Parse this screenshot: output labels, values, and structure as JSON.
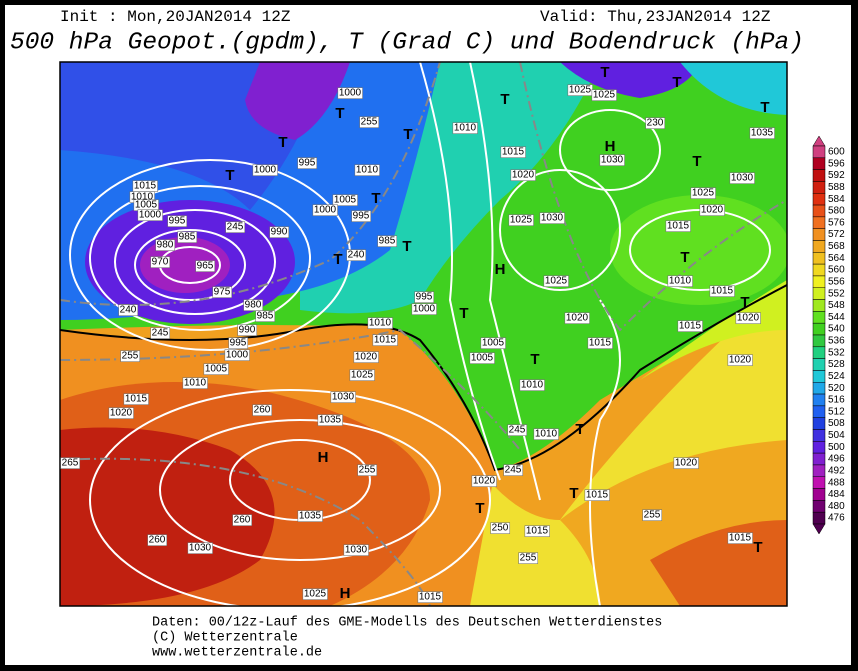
{
  "header": {
    "init": "Init : Mon,20JAN2014 12Z",
    "valid": "Valid: Thu,23JAN2014 12Z",
    "title": "500 hPa Geopot.(gpdm), T (Grad C) und Bodendruck (hPa)"
  },
  "colorbar": {
    "levels": [
      600,
      596,
      592,
      588,
      584,
      580,
      576,
      572,
      568,
      564,
      560,
      556,
      552,
      548,
      544,
      540,
      536,
      532,
      528,
      524,
      520,
      516,
      512,
      508,
      504,
      500,
      496,
      492,
      488,
      484,
      480,
      476
    ],
    "colors": [
      "#d04080",
      "#b00020",
      "#c01010",
      "#d02010",
      "#e03010",
      "#e85018",
      "#f07020",
      "#f09020",
      "#f0a820",
      "#f0c020",
      "#f0d820",
      "#f0f020",
      "#d0f020",
      "#a0e820",
      "#60e020",
      "#40d020",
      "#30c840",
      "#20d080",
      "#20d0b0",
      "#20c8d8",
      "#20a8e8",
      "#2080f0",
      "#2060f0",
      "#2040e0",
      "#4030e0",
      "#6020e0",
      "#8020d0",
      "#a020c0",
      "#c010b0",
      "#a00090",
      "#700070",
      "#500050"
    ]
  },
  "map_labels": [
    "T",
    "1025",
    "1025",
    "T",
    "T",
    "1035",
    "230",
    "H",
    "1030",
    "T",
    "1030",
    "1025",
    "1020",
    "1015",
    "T",
    "1010",
    "1015",
    "T",
    "1020",
    "1015",
    "1020",
    "1020",
    "1015",
    "T",
    "H",
    "1025",
    "1030",
    "1025",
    "1020",
    "1015",
    "1010",
    "T",
    "1020",
    "1015",
    "T",
    "1010",
    "1010",
    "T",
    "1005",
    "1005",
    "T",
    "1000",
    "995",
    "1010",
    "1015",
    "1020",
    "1025",
    "1030",
    "1035",
    "H",
    "255",
    "1035",
    "1030",
    "260",
    "265",
    "260",
    "260",
    "1030",
    "1025",
    "H",
    "1020",
    "1015",
    "1010",
    "1005",
    "1000",
    "995",
    "990",
    "985",
    "980",
    "975",
    "965",
    "1015",
    "1010",
    "1005",
    "1000",
    "995",
    "985",
    "980",
    "970",
    "T",
    "1000",
    "995",
    "1010",
    "1005",
    "995",
    "1000",
    "985",
    "990",
    "T",
    "T",
    "1000",
    "255",
    "T",
    "T",
    "T",
    "240",
    "245",
    "T",
    "240",
    "245",
    "255",
    "1015",
    "T",
    "1015",
    "255",
    "250",
    "T",
    "1020",
    "245",
    "245",
    "255",
    "1015"
  ],
  "footer": {
    "line1": "Daten: 00/12z-Lauf des GME-Modells des Deutschen Wetterdienstes",
    "line2": "(C) Wetterzentrale",
    "line3": "www.wetterzentrale.de"
  }
}
